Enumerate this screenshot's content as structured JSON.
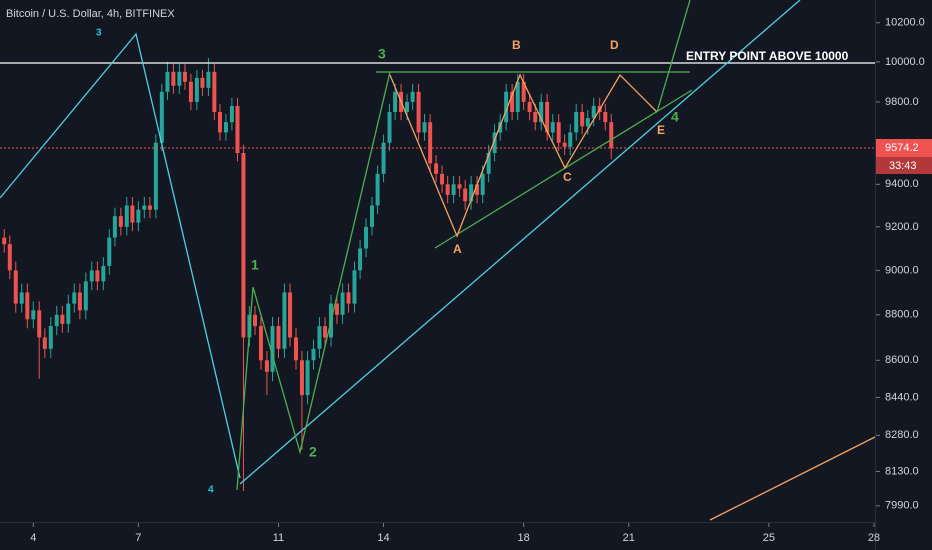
{
  "chart_data": {
    "type": "candlestick",
    "title": "Bitcoin / U.S. Dollar, 4h, BITFINEX",
    "up_color": "#26a69a",
    "down_color": "#ef5350",
    "log_scale": true,
    "xlim": [
      3.05,
      28.03
    ],
    "ylim": [
      7925,
      10318
    ],
    "xticks": [
      4,
      7,
      11,
      14,
      18,
      21,
      25,
      28
    ],
    "yticks": [
      {
        "value": 10200,
        "label": "10200.0"
      },
      {
        "value": 10000,
        "label": "10000.0"
      },
      {
        "value": 9800,
        "label": "9800.0"
      },
      {
        "value": 9400,
        "label": "9400.0"
      },
      {
        "value": 9200,
        "label": "9200.0"
      },
      {
        "value": 9000,
        "label": "9000.0"
      },
      {
        "value": 8800,
        "label": "8800.0"
      },
      {
        "value": 8600,
        "label": "8600.0"
      },
      {
        "value": 8440,
        "label": "8440.0"
      },
      {
        "value": 8280,
        "label": "8280.0"
      },
      {
        "value": 8130,
        "label": "8130.0"
      },
      {
        "value": 7990,
        "label": "7990.0"
      }
    ],
    "last_price": 9574.2,
    "countdown": "33:43",
    "annotations": [
      "3",
      "3",
      "1",
      "2",
      "4",
      "4",
      "A",
      "B",
      "C",
      "D",
      "E",
      "ENTRY POINT ABOVE 10000"
    ],
    "candles": [
      [
        3.17,
        9150,
        9190,
        9080,
        9120
      ],
      [
        3.33,
        9120,
        9160,
        8960,
        9000
      ],
      [
        3.5,
        9000,
        9040,
        8810,
        8850
      ],
      [
        3.67,
        8850,
        8940,
        8810,
        8900
      ],
      [
        3.83,
        8900,
        8940,
        8740,
        8780
      ],
      [
        4,
        8780,
        8860,
        8740,
        8820
      ],
      [
        4.17,
        8820,
        8860,
        8520,
        8700
      ],
      [
        4.33,
        8700,
        8740,
        8610,
        8650
      ],
      [
        4.5,
        8650,
        8790,
        8610,
        8750
      ],
      [
        4.67,
        8750,
        8840,
        8710,
        8800
      ],
      [
        4.83,
        8800,
        8840,
        8720,
        8760
      ],
      [
        5,
        8760,
        8890,
        8720,
        8850
      ],
      [
        5.17,
        8850,
        8940,
        8810,
        8900
      ],
      [
        5.33,
        8900,
        8940,
        8780,
        8820
      ],
      [
        5.5,
        8820,
        8990,
        8780,
        8950
      ],
      [
        5.67,
        8950,
        9040,
        8910,
        9000
      ],
      [
        5.83,
        9000,
        9040,
        8910,
        8950
      ],
      [
        6,
        8950,
        9060,
        8910,
        9020
      ],
      [
        6.17,
        9020,
        9190,
        8980,
        9150
      ],
      [
        6.33,
        9150,
        9290,
        9110,
        9250
      ],
      [
        6.5,
        9250,
        9290,
        9160,
        9200
      ],
      [
        6.67,
        9200,
        9340,
        9160,
        9300
      ],
      [
        6.83,
        9300,
        9340,
        9180,
        9220
      ],
      [
        7,
        9220,
        9320,
        9180,
        9280
      ],
      [
        7.17,
        9280,
        9340,
        9240,
        9300
      ],
      [
        7.33,
        9300,
        9340,
        9240,
        9280
      ],
      [
        7.5,
        9280,
        9640,
        9240,
        9600
      ],
      [
        7.67,
        9600,
        9890,
        9560,
        9850
      ],
      [
        7.83,
        9850,
        10000,
        9810,
        9950
      ],
      [
        8,
        9950,
        9990,
        9840,
        9880
      ],
      [
        8.17,
        9880,
        9990,
        9840,
        9950
      ],
      [
        8.33,
        9950,
        9990,
        9860,
        9900
      ],
      [
        8.5,
        9900,
        9940,
        9760,
        9800
      ],
      [
        8.67,
        9800,
        9960,
        9760,
        9920
      ],
      [
        8.83,
        9920,
        9960,
        9830,
        9870
      ],
      [
        9,
        9870,
        10020,
        9830,
        9950
      ],
      [
        9.17,
        9950,
        9990,
        9710,
        9750
      ],
      [
        9.33,
        9750,
        9790,
        9610,
        9650
      ],
      [
        9.5,
        9650,
        9740,
        9610,
        9700
      ],
      [
        9.67,
        9700,
        9820,
        9660,
        9780
      ],
      [
        9.83,
        9780,
        9820,
        9510,
        9550
      ],
      [
        10,
        9550,
        9590,
        8050,
        8700
      ],
      [
        10.17,
        8700,
        8840,
        8660,
        8800
      ],
      [
        10.33,
        8800,
        8840,
        8710,
        8750
      ],
      [
        10.5,
        8750,
        8790,
        8560,
        8600
      ],
      [
        10.67,
        8600,
        8640,
        8450,
        8550
      ],
      [
        10.83,
        8550,
        8790,
        8510,
        8750
      ],
      [
        11,
        8750,
        8790,
        8610,
        8650
      ],
      [
        11.17,
        8650,
        8940,
        8610,
        8900
      ],
      [
        11.33,
        8900,
        8940,
        8660,
        8700
      ],
      [
        11.5,
        8700,
        8740,
        8560,
        8600
      ],
      [
        11.67,
        8600,
        8640,
        8220,
        8450
      ],
      [
        11.83,
        8450,
        8640,
        8410,
        8600
      ],
      [
        12,
        8600,
        8690,
        8560,
        8650
      ],
      [
        12.17,
        8650,
        8790,
        8610,
        8750
      ],
      [
        12.33,
        8750,
        8790,
        8660,
        8700
      ],
      [
        12.5,
        8700,
        8890,
        8660,
        8850
      ],
      [
        12.67,
        8850,
        8890,
        8760,
        8800
      ],
      [
        12.83,
        8800,
        8940,
        8760,
        8900
      ],
      [
        13,
        8900,
        8940,
        8810,
        8850
      ],
      [
        13.17,
        8850,
        9040,
        8810,
        9000
      ],
      [
        13.33,
        9000,
        9140,
        8960,
        9100
      ],
      [
        13.5,
        9100,
        9240,
        9060,
        9200
      ],
      [
        13.67,
        9200,
        9340,
        9160,
        9300
      ],
      [
        13.83,
        9300,
        9490,
        9260,
        9450
      ],
      [
        14,
        9450,
        9640,
        9410,
        9600
      ],
      [
        14.17,
        9600,
        9790,
        9560,
        9750
      ],
      [
        14.33,
        9750,
        9890,
        9710,
        9850
      ],
      [
        14.5,
        9850,
        9890,
        9710,
        9750
      ],
      [
        14.67,
        9750,
        9840,
        9710,
        9800
      ],
      [
        14.83,
        9800,
        9890,
        9760,
        9850
      ],
      [
        15,
        9850,
        9890,
        9610,
        9650
      ],
      [
        15.17,
        9650,
        9740,
        9610,
        9700
      ],
      [
        15.33,
        9700,
        9740,
        9460,
        9500
      ],
      [
        15.5,
        9500,
        9540,
        9410,
        9450
      ],
      [
        15.67,
        9450,
        9490,
        9360,
        9400
      ],
      [
        15.83,
        9400,
        9440,
        9310,
        9350
      ],
      [
        16,
        9350,
        9440,
        9310,
        9400
      ],
      [
        16.17,
        9400,
        9440,
        9340,
        9380
      ],
      [
        16.33,
        9380,
        9420,
        9280,
        9320
      ],
      [
        16.5,
        9320,
        9440,
        9280,
        9400
      ],
      [
        16.67,
        9400,
        9440,
        9310,
        9350
      ],
      [
        16.83,
        9350,
        9490,
        9310,
        9450
      ],
      [
        17,
        9450,
        9590,
        9410,
        9550
      ],
      [
        17.17,
        9550,
        9690,
        9510,
        9650
      ],
      [
        17.33,
        9650,
        9740,
        9610,
        9700
      ],
      [
        17.5,
        9700,
        9890,
        9660,
        9850
      ],
      [
        17.67,
        9850,
        9890,
        9710,
        9750
      ],
      [
        17.83,
        9750,
        9940,
        9710,
        9900
      ],
      [
        18,
        9900,
        9940,
        9760,
        9800
      ],
      [
        18.17,
        9800,
        9840,
        9710,
        9750
      ],
      [
        18.33,
        9750,
        9790,
        9660,
        9700
      ],
      [
        18.5,
        9700,
        9840,
        9660,
        9800
      ],
      [
        18.67,
        9800,
        9840,
        9610,
        9650
      ],
      [
        18.83,
        9650,
        9740,
        9610,
        9700
      ],
      [
        19,
        9700,
        9740,
        9560,
        9600
      ],
      [
        19.17,
        9600,
        9640,
        9540,
        9580
      ],
      [
        19.33,
        9580,
        9690,
        9540,
        9650
      ],
      [
        19.5,
        9650,
        9790,
        9610,
        9750
      ],
      [
        19.67,
        9750,
        9790,
        9640,
        9680
      ],
      [
        19.83,
        9680,
        9760,
        9640,
        9720
      ],
      [
        20,
        9720,
        9820,
        9680,
        9780
      ],
      [
        20.17,
        9780,
        9820,
        9710,
        9750
      ],
      [
        20.33,
        9750,
        9790,
        9660,
        9700
      ],
      [
        20.5,
        9700,
        9740,
        9520,
        9574.2
      ]
    ]
  }
}
